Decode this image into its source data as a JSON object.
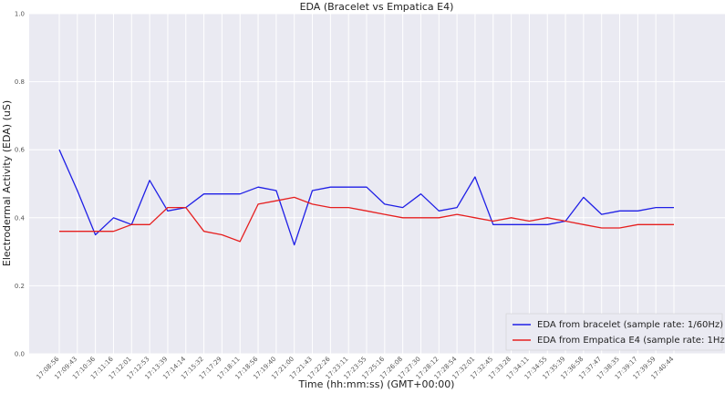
{
  "chart_data": {
    "type": "line",
    "title": "EDA (Bracelet vs Empatica E4)",
    "xlabel": "Time (hh:mm:ss) (GMT+00:00)",
    "ylabel": "Electrodermal Activity (EDA) (uS)",
    "ylim": [
      0.0,
      1.0
    ],
    "yticks": [
      "0.0",
      "0.2",
      "0.4",
      "0.6",
      "0.8",
      "1.0"
    ],
    "grid": true,
    "legend_position": "lower-right",
    "categories": [
      "17:08:56",
      "17:09:43",
      "17:10:36",
      "17:11:16",
      "17:12:01",
      "17:12:53",
      "17:13:39",
      "17:14:14",
      "17:15:32",
      "17:17:29",
      "17:18:11",
      "17:18:56",
      "17:19:40",
      "17:21:00",
      "17:21:43",
      "17:22:26",
      "17:23:11",
      "17:23:55",
      "17:25:16",
      "17:26:08",
      "17:27:30",
      "17:28:12",
      "17:28:54",
      "17:32:01",
      "17:32:45",
      "17:33:28",
      "17:34:11",
      "17:34:55",
      "17:35:39",
      "17:36:58",
      "17:37:47",
      "17:38:35",
      "17:39:17",
      "17:39:59",
      "17:40:44"
    ],
    "series": [
      {
        "name": "EDA from bracelet (sample rate: 1/60Hz)",
        "color": "#1f1fe6",
        "values": [
          0.6,
          0.48,
          0.35,
          0.4,
          0.38,
          0.51,
          0.42,
          0.43,
          0.47,
          0.47,
          0.47,
          0.49,
          0.48,
          0.32,
          0.48,
          0.49,
          0.49,
          0.49,
          0.44,
          0.43,
          0.47,
          0.42,
          0.43,
          0.52,
          0.38,
          0.38,
          0.38,
          0.38,
          0.39,
          0.46,
          0.41,
          0.42,
          0.42,
          0.43,
          0.43
        ]
      },
      {
        "name": "EDA from Empatica E4 (sample rate: 1Hz)",
        "color": "#e61f1f",
        "values": [
          0.36,
          0.36,
          0.36,
          0.36,
          0.38,
          0.38,
          0.43,
          0.43,
          0.36,
          0.35,
          0.33,
          0.44,
          0.45,
          0.46,
          0.44,
          0.43,
          0.43,
          0.42,
          0.41,
          0.4,
          0.4,
          0.4,
          0.41,
          0.4,
          0.39,
          0.4,
          0.39,
          0.4,
          0.39,
          0.38,
          0.37,
          0.37,
          0.38,
          0.38,
          0.38
        ]
      }
    ]
  }
}
